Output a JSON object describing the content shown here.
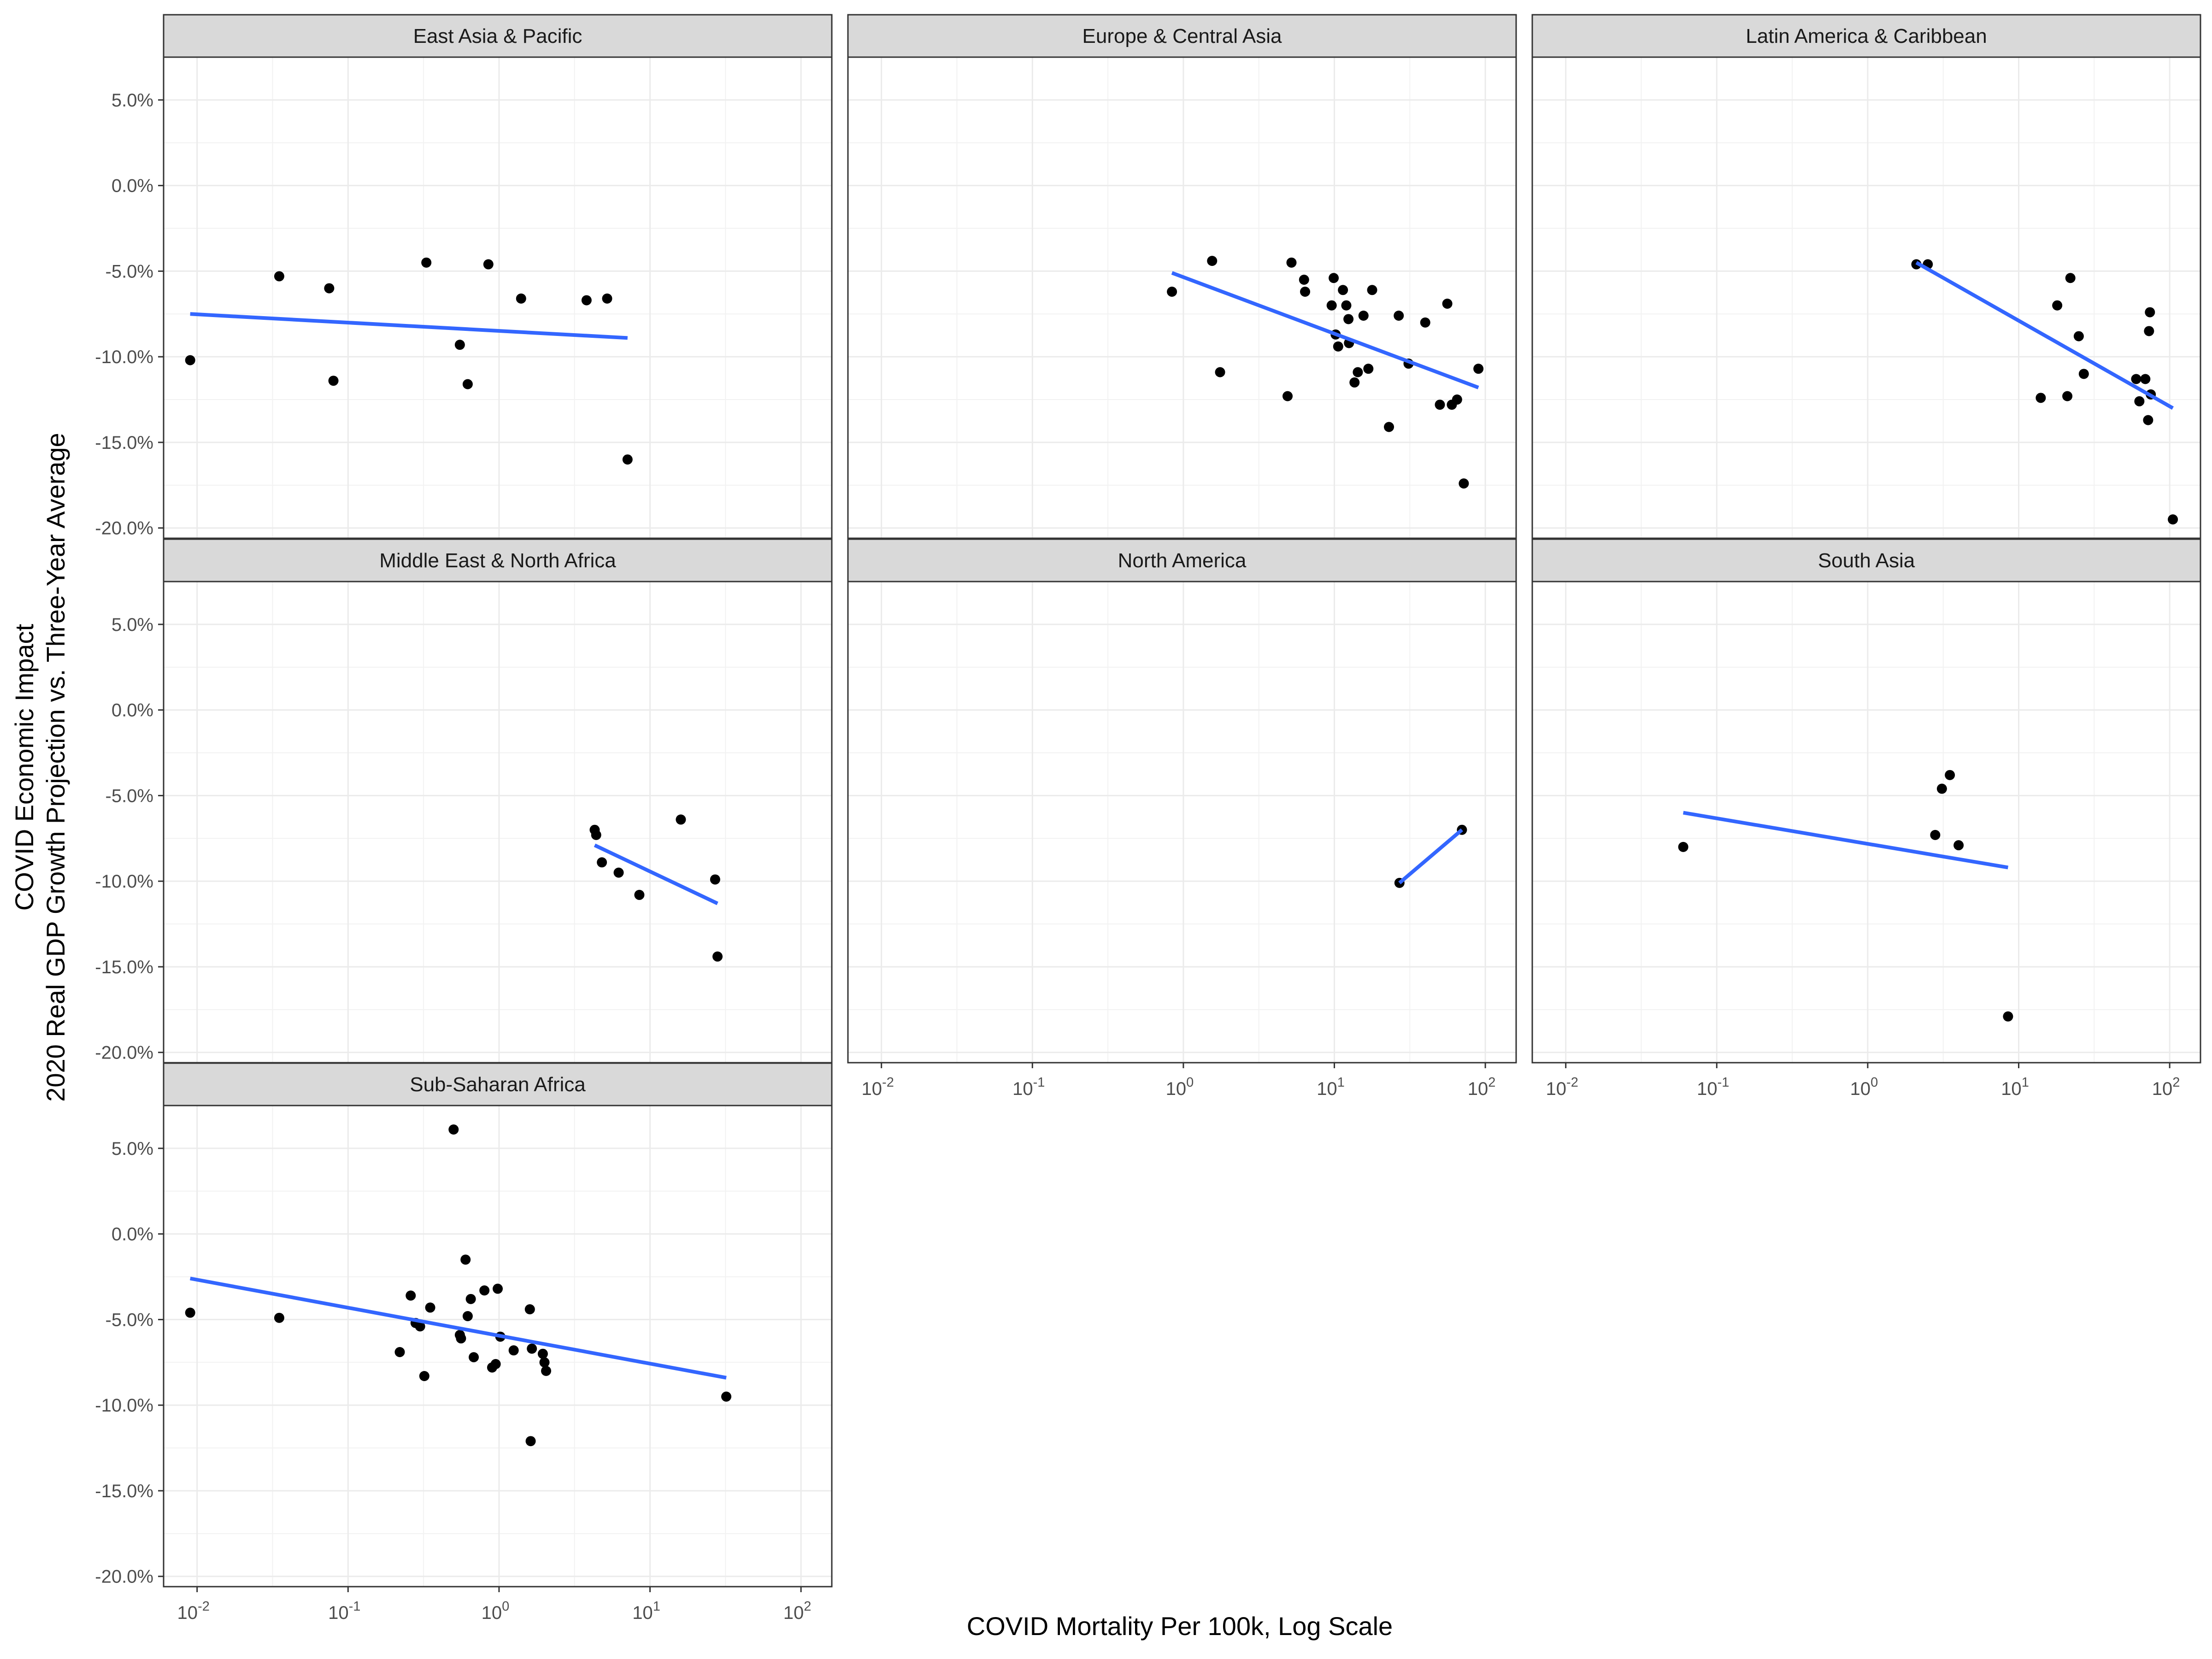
{
  "figure": {
    "xlabel": "COVID Mortality Per 100k, Log Scale",
    "ylabel_lines": [
      "COVID Economic Impact",
      "2020 Real GDP Growth Projection vs. Three-Year Average"
    ]
  },
  "chart_data": {
    "type": "scatter",
    "facets": true,
    "xscale": "log10",
    "xlim": [
      0.006,
      160
    ],
    "ylim": [
      -20.6,
      7.5
    ],
    "x_ticks": [
      {
        "value": 0.01,
        "base": "10",
        "exp": "-2"
      },
      {
        "value": 0.1,
        "base": "10",
        "exp": "-1"
      },
      {
        "value": 1,
        "base": "10",
        "exp": "0"
      },
      {
        "value": 10,
        "base": "10",
        "exp": "1"
      },
      {
        "value": 100,
        "base": "10",
        "exp": "2"
      }
    ],
    "y_ticks": [
      {
        "value": 5,
        "label": "5.0%"
      },
      {
        "value": 0,
        "label": "0.0%"
      },
      {
        "value": -5,
        "label": "-5.0%"
      },
      {
        "value": -10,
        "label": "-10.0%"
      },
      {
        "value": -15,
        "label": "-15.0%"
      },
      {
        "value": -20,
        "label": "-20.0%"
      }
    ],
    "grid": true,
    "point_color": "#000000",
    "trend_color": "#3366FF",
    "strip_fill": "#D9D9D9",
    "panels": [
      {
        "name": "East Asia & Pacific",
        "points": [
          [
            0.009,
            -10.2
          ],
          [
            0.035,
            -5.3
          ],
          [
            0.075,
            -6.0
          ],
          [
            0.08,
            -11.4
          ],
          [
            0.33,
            -4.5
          ],
          [
            0.55,
            -9.3
          ],
          [
            0.62,
            -11.6
          ],
          [
            0.85,
            -4.6
          ],
          [
            1.4,
            -6.6
          ],
          [
            3.8,
            -6.7
          ],
          [
            5.2,
            -6.6
          ],
          [
            7.1,
            -16.0
          ]
        ],
        "trend": [
          [
            0.009,
            -7.5
          ],
          [
            7.1,
            -8.9
          ]
        ]
      },
      {
        "name": "Europe & Central Asia",
        "points": [
          [
            0.84,
            -6.2
          ],
          [
            1.55,
            -4.4
          ],
          [
            1.75,
            -10.9
          ],
          [
            4.9,
            -12.3
          ],
          [
            5.2,
            -4.5
          ],
          [
            6.3,
            -5.5
          ],
          [
            6.4,
            -6.2
          ],
          [
            9.6,
            -7.0
          ],
          [
            9.9,
            -5.4
          ],
          [
            10.2,
            -8.7
          ],
          [
            10.6,
            -9.4
          ],
          [
            11.4,
            -6.1
          ],
          [
            12.0,
            -7.0
          ],
          [
            12.4,
            -7.8
          ],
          [
            12.5,
            -9.2
          ],
          [
            13.6,
            -11.5
          ],
          [
            14.3,
            -10.9
          ],
          [
            15.6,
            -7.6
          ],
          [
            16.8,
            -10.7
          ],
          [
            17.8,
            -6.1
          ],
          [
            23.0,
            -14.1
          ],
          [
            26.7,
            -7.6
          ],
          [
            31.0,
            -10.4
          ],
          [
            40.0,
            -8.0
          ],
          [
            50.0,
            -12.8
          ],
          [
            56.0,
            -6.9
          ],
          [
            60.0,
            -12.8
          ],
          [
            65.0,
            -12.5
          ],
          [
            72.0,
            -17.4
          ],
          [
            90.0,
            -10.7
          ]
        ],
        "trend": [
          [
            0.84,
            -5.1
          ],
          [
            90.0,
            -11.8
          ]
        ]
      },
      {
        "name": "Latin America & Caribbean",
        "points": [
          [
            2.1,
            -4.6
          ],
          [
            2.5,
            -4.6
          ],
          [
            14.0,
            -12.4
          ],
          [
            18.0,
            -7.0
          ],
          [
            21.0,
            -12.3
          ],
          [
            22.0,
            -5.4
          ],
          [
            25.0,
            -8.8
          ],
          [
            27.0,
            -11.0
          ],
          [
            60.0,
            -11.3
          ],
          [
            63.0,
            -12.6
          ],
          [
            69.0,
            -11.3
          ],
          [
            72.0,
            -13.7
          ],
          [
            73.0,
            -8.5
          ],
          [
            74.0,
            -7.4
          ],
          [
            75.0,
            -12.2
          ],
          [
            105.0,
            -19.5
          ]
        ],
        "trend": [
          [
            2.1,
            -4.5
          ],
          [
            105.0,
            -13.0
          ]
        ]
      },
      {
        "name": "Middle East & North Africa",
        "points": [
          [
            4.3,
            -7.0
          ],
          [
            4.4,
            -7.3
          ],
          [
            4.8,
            -8.9
          ],
          [
            6.2,
            -9.5
          ],
          [
            8.5,
            -10.8
          ],
          [
            16.0,
            -6.4
          ],
          [
            27.0,
            -9.9
          ],
          [
            28.0,
            -14.4
          ]
        ],
        "trend": [
          [
            4.3,
            -7.9
          ],
          [
            28.0,
            -11.3
          ]
        ]
      },
      {
        "name": "North America",
        "points": [
          [
            27.0,
            -10.1
          ],
          [
            70.0,
            -7.0
          ]
        ],
        "trend": [
          [
            27.0,
            -10.1
          ],
          [
            70.0,
            -7.0
          ]
        ]
      },
      {
        "name": "South Asia",
        "points": [
          [
            0.06,
            -8.0
          ],
          [
            2.8,
            -7.3
          ],
          [
            3.1,
            -4.6
          ],
          [
            3.5,
            -3.8
          ],
          [
            4.0,
            -7.9
          ],
          [
            8.5,
            -17.9
          ]
        ],
        "trend": [
          [
            0.06,
            -6.0
          ],
          [
            8.5,
            -9.2
          ]
        ]
      },
      {
        "name": "Sub-Saharan Africa",
        "points": [
          [
            0.009,
            -4.6
          ],
          [
            0.035,
            -4.9
          ],
          [
            0.22,
            -6.9
          ],
          [
            0.26,
            -3.6
          ],
          [
            0.28,
            -5.2
          ],
          [
            0.3,
            -5.4
          ],
          [
            0.32,
            -8.3
          ],
          [
            0.35,
            -4.3
          ],
          [
            0.5,
            6.1
          ],
          [
            0.55,
            -5.9
          ],
          [
            0.56,
            -6.1
          ],
          [
            0.6,
            -1.5
          ],
          [
            0.62,
            -4.8
          ],
          [
            0.65,
            -3.8
          ],
          [
            0.68,
            -7.2
          ],
          [
            0.8,
            -3.3
          ],
          [
            0.9,
            -7.8
          ],
          [
            0.95,
            -7.6
          ],
          [
            0.98,
            -3.2
          ],
          [
            1.02,
            -6.0
          ],
          [
            1.25,
            -6.8
          ],
          [
            1.6,
            -4.4
          ],
          [
            1.62,
            -12.1
          ],
          [
            1.65,
            -6.7
          ],
          [
            1.95,
            -7.0
          ],
          [
            2.0,
            -7.5
          ],
          [
            2.05,
            -8.0
          ],
          [
            32.0,
            -9.5
          ]
        ],
        "trend": [
          [
            0.009,
            -2.6
          ],
          [
            32.0,
            -8.4
          ]
        ]
      }
    ]
  }
}
